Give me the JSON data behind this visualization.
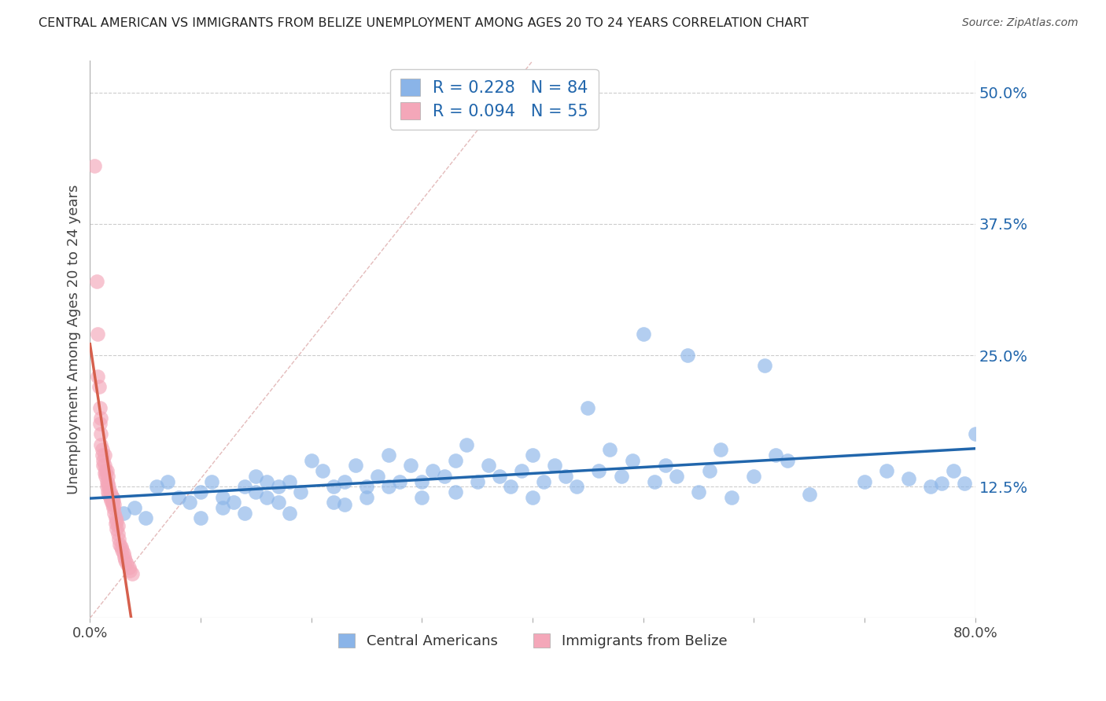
{
  "title": "CENTRAL AMERICAN VS IMMIGRANTS FROM BELIZE UNEMPLOYMENT AMONG AGES 20 TO 24 YEARS CORRELATION CHART",
  "source": "Source: ZipAtlas.com",
  "ylabel": "Unemployment Among Ages 20 to 24 years",
  "xlim": [
    0,
    0.8
  ],
  "ylim": [
    0.0,
    0.53
  ],
  "xticks": [
    0.0,
    0.1,
    0.2,
    0.3,
    0.4,
    0.5,
    0.6,
    0.7,
    0.8
  ],
  "xticklabels": [
    "0.0%",
    "",
    "",
    "",
    "",
    "",
    "",
    "",
    "80.0%"
  ],
  "ytick_positions": [
    0.125,
    0.25,
    0.375,
    0.5
  ],
  "ytick_labels": [
    "12.5%",
    "25.0%",
    "37.5%",
    "50.0%"
  ],
  "legend1_label": "R = 0.228   N = 84",
  "legend2_label": "R = 0.094   N = 55",
  "legend_bottom_label1": "Central Americans",
  "legend_bottom_label2": "Immigrants from Belize",
  "color_blue": "#8ab4e8",
  "color_pink": "#f4a7b9",
  "trend_color_blue": "#2166ac",
  "trend_color_pink": "#d6604d",
  "diag_color": "#f4a7b9",
  "background_color": "#ffffff",
  "grid_color": "#cccccc",
  "blue_points": [
    [
      0.02,
      0.115
    ],
    [
      0.03,
      0.1
    ],
    [
      0.04,
      0.105
    ],
    [
      0.05,
      0.095
    ],
    [
      0.06,
      0.125
    ],
    [
      0.07,
      0.13
    ],
    [
      0.08,
      0.115
    ],
    [
      0.09,
      0.11
    ],
    [
      0.1,
      0.12
    ],
    [
      0.1,
      0.095
    ],
    [
      0.11,
      0.13
    ],
    [
      0.12,
      0.115
    ],
    [
      0.12,
      0.105
    ],
    [
      0.13,
      0.11
    ],
    [
      0.14,
      0.125
    ],
    [
      0.14,
      0.1
    ],
    [
      0.15,
      0.12
    ],
    [
      0.15,
      0.135
    ],
    [
      0.16,
      0.115
    ],
    [
      0.16,
      0.13
    ],
    [
      0.17,
      0.11
    ],
    [
      0.17,
      0.125
    ],
    [
      0.18,
      0.13
    ],
    [
      0.18,
      0.1
    ],
    [
      0.19,
      0.12
    ],
    [
      0.2,
      0.15
    ],
    [
      0.21,
      0.14
    ],
    [
      0.22,
      0.125
    ],
    [
      0.22,
      0.11
    ],
    [
      0.23,
      0.13
    ],
    [
      0.23,
      0.108
    ],
    [
      0.24,
      0.145
    ],
    [
      0.25,
      0.125
    ],
    [
      0.25,
      0.115
    ],
    [
      0.26,
      0.135
    ],
    [
      0.27,
      0.125
    ],
    [
      0.27,
      0.155
    ],
    [
      0.28,
      0.13
    ],
    [
      0.29,
      0.145
    ],
    [
      0.3,
      0.13
    ],
    [
      0.3,
      0.115
    ],
    [
      0.31,
      0.14
    ],
    [
      0.32,
      0.135
    ],
    [
      0.33,
      0.12
    ],
    [
      0.33,
      0.15
    ],
    [
      0.34,
      0.165
    ],
    [
      0.35,
      0.13
    ],
    [
      0.36,
      0.145
    ],
    [
      0.37,
      0.135
    ],
    [
      0.38,
      0.125
    ],
    [
      0.39,
      0.14
    ],
    [
      0.4,
      0.155
    ],
    [
      0.4,
      0.115
    ],
    [
      0.41,
      0.13
    ],
    [
      0.42,
      0.145
    ],
    [
      0.43,
      0.135
    ],
    [
      0.44,
      0.125
    ],
    [
      0.45,
      0.2
    ],
    [
      0.46,
      0.14
    ],
    [
      0.47,
      0.16
    ],
    [
      0.48,
      0.135
    ],
    [
      0.49,
      0.15
    ],
    [
      0.5,
      0.27
    ],
    [
      0.51,
      0.13
    ],
    [
      0.52,
      0.145
    ],
    [
      0.53,
      0.135
    ],
    [
      0.54,
      0.25
    ],
    [
      0.55,
      0.12
    ],
    [
      0.56,
      0.14
    ],
    [
      0.57,
      0.16
    ],
    [
      0.58,
      0.115
    ],
    [
      0.6,
      0.135
    ],
    [
      0.61,
      0.24
    ],
    [
      0.62,
      0.155
    ],
    [
      0.63,
      0.15
    ],
    [
      0.65,
      0.118
    ],
    [
      0.7,
      0.13
    ],
    [
      0.72,
      0.14
    ],
    [
      0.74,
      0.133
    ],
    [
      0.76,
      0.125
    ],
    [
      0.77,
      0.128
    ],
    [
      0.78,
      0.14
    ],
    [
      0.79,
      0.128
    ],
    [
      0.8,
      0.175
    ]
  ],
  "pink_points": [
    [
      0.004,
      0.43
    ],
    [
      0.006,
      0.32
    ],
    [
      0.007,
      0.27
    ],
    [
      0.007,
      0.23
    ],
    [
      0.008,
      0.22
    ],
    [
      0.009,
      0.2
    ],
    [
      0.009,
      0.185
    ],
    [
      0.01,
      0.19
    ],
    [
      0.01,
      0.175
    ],
    [
      0.01,
      0.165
    ],
    [
      0.011,
      0.16
    ],
    [
      0.011,
      0.155
    ],
    [
      0.012,
      0.15
    ],
    [
      0.012,
      0.145
    ],
    [
      0.013,
      0.155
    ],
    [
      0.013,
      0.145
    ],
    [
      0.013,
      0.138
    ],
    [
      0.014,
      0.14
    ],
    [
      0.014,
      0.135
    ],
    [
      0.015,
      0.14
    ],
    [
      0.015,
      0.13
    ],
    [
      0.015,
      0.125
    ],
    [
      0.016,
      0.135
    ],
    [
      0.016,
      0.128
    ],
    [
      0.016,
      0.12
    ],
    [
      0.017,
      0.125
    ],
    [
      0.017,
      0.118
    ],
    [
      0.018,
      0.12
    ],
    [
      0.018,
      0.115
    ],
    [
      0.019,
      0.118
    ],
    [
      0.019,
      0.112
    ],
    [
      0.02,
      0.115
    ],
    [
      0.02,
      0.11
    ],
    [
      0.02,
      0.108
    ],
    [
      0.021,
      0.112
    ],
    [
      0.021,
      0.105
    ],
    [
      0.022,
      0.108
    ],
    [
      0.022,
      0.1
    ],
    [
      0.023,
      0.095
    ],
    [
      0.023,
      0.09
    ],
    [
      0.024,
      0.092
    ],
    [
      0.024,
      0.085
    ],
    [
      0.025,
      0.088
    ],
    [
      0.025,
      0.08
    ],
    [
      0.026,
      0.075
    ],
    [
      0.027,
      0.07
    ],
    [
      0.028,
      0.068
    ],
    [
      0.029,
      0.065
    ],
    [
      0.03,
      0.062
    ],
    [
      0.031,
      0.058
    ],
    [
      0.032,
      0.055
    ],
    [
      0.033,
      0.052
    ],
    [
      0.035,
      0.048
    ],
    [
      0.036,
      0.045
    ],
    [
      0.038,
      0.042
    ]
  ]
}
